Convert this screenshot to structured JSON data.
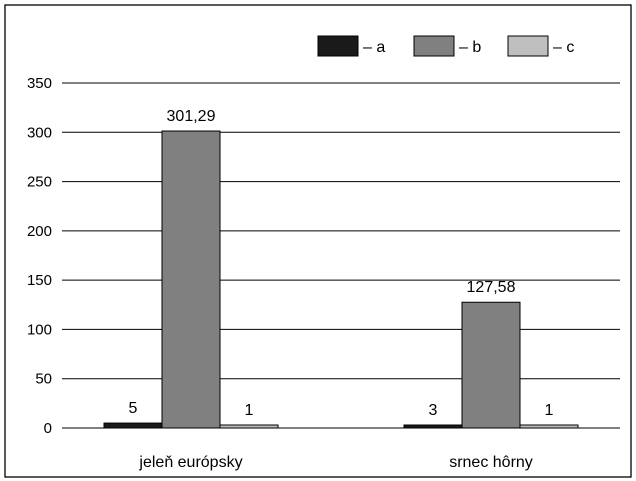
{
  "chart_data": {
    "type": "bar",
    "categories": [
      "jeleň európsky",
      "srnec hôrny"
    ],
    "series": [
      {
        "name": "– a",
        "values": [
          5,
          3
        ],
        "labels": [
          "5",
          "3"
        ],
        "color": "#1a1a1a"
      },
      {
        "name": "– b",
        "values": [
          301.29,
          127.58
        ],
        "labels": [
          "301,29",
          "127,58"
        ],
        "color": "#808080"
      },
      {
        "name": "– c",
        "values": [
          1,
          1
        ],
        "labels": [
          "1",
          "1"
        ],
        "color": "#bfbfbf"
      }
    ],
    "yticks": [
      "0",
      "50",
      "100",
      "150",
      "200",
      "250",
      "300",
      "350"
    ],
    "ylim": [
      0,
      350
    ],
    "grid": true,
    "legend": "top-right",
    "title": "",
    "xlabel": "",
    "ylabel": ""
  }
}
